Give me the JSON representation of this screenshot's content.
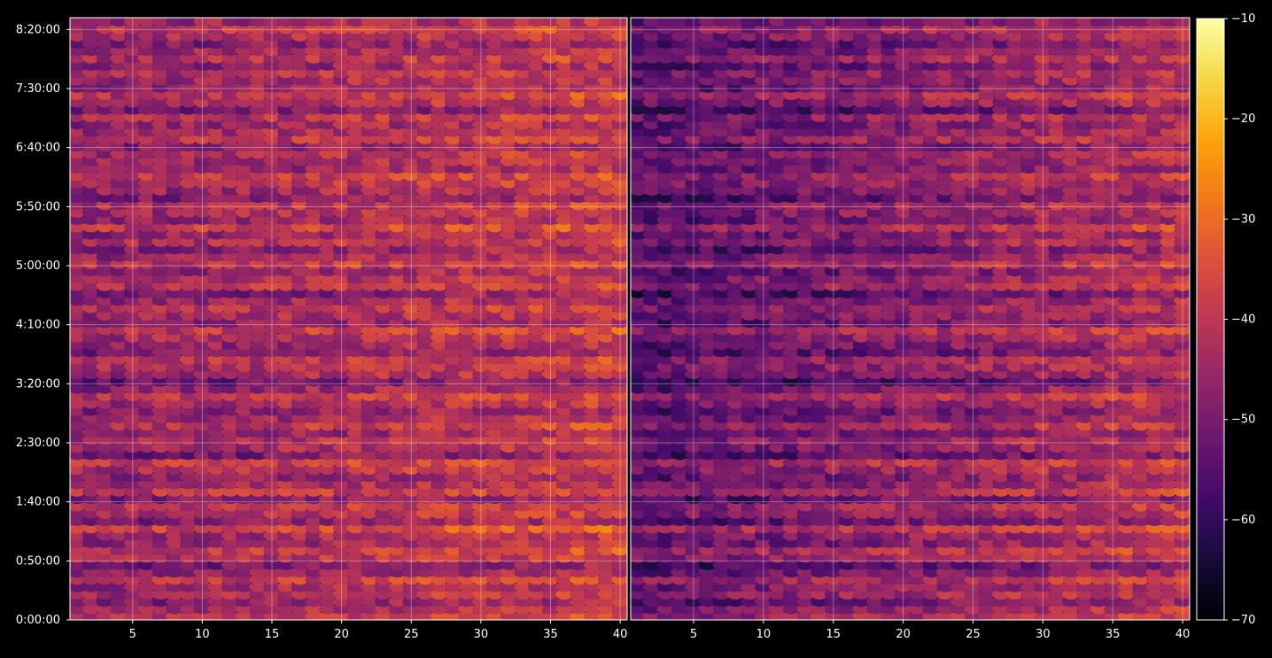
{
  "chart_data": [
    {
      "type": "heatmap",
      "title": "",
      "xlabel": "",
      "ylabel": "",
      "x_range": [
        1,
        40
      ],
      "x_ticks": [
        5,
        10,
        15,
        20,
        25,
        30,
        35,
        40
      ],
      "x_tick_labels": [
        "5",
        "10",
        "15",
        "20",
        "25",
        "30",
        "35",
        "40"
      ],
      "y_range_seconds": [
        0,
        30600
      ],
      "y_ticks": [
        "0:00:00",
        "0:50:00",
        "1:40:00",
        "2:30:00",
        "3:20:00",
        "4:10:00",
        "5:00:00",
        "5:50:00",
        "6:40:00",
        "7:30:00",
        "8:20:00"
      ],
      "grid": true,
      "colormap": "inferno",
      "value_range": [
        -70,
        -10
      ],
      "row_profile_db": [
        -38,
        -42,
        -50,
        -40,
        -45,
        -36,
        -48,
        -55,
        -40,
        -34,
        -46,
        -44,
        -30,
        -50,
        -41,
        -38,
        -52,
        -35,
        -43,
        -47,
        -39,
        -33,
        -55,
        -44,
        -40,
        -48,
        -37,
        -45,
        -50,
        -42,
        -36,
        -46,
        -58,
        -44,
        -40,
        -38,
        -52,
        -47,
        -41,
        -35,
        -49,
        -43,
        -39,
        -45,
        -54,
        -37,
        -42,
        -48,
        -36,
        -44,
        -50,
        -40,
        -46,
        -33,
        -47,
        -42,
        -38,
        -52,
        -45,
        -40,
        -36,
        -48,
        -44,
        -41,
        -50,
        -37,
        -43,
        -46,
        -39,
        -55,
        -42,
        -35,
        -47,
        -44,
        -40,
        -49,
        -38,
        -45,
        -52,
        -41,
        -36,
        -46
      ],
      "column_trend_db": {
        "start": -50,
        "end": -32
      }
    },
    {
      "type": "heatmap",
      "title": "",
      "xlabel": "",
      "ylabel": "",
      "x_range": [
        1,
        40
      ],
      "x_ticks": [
        5,
        10,
        15,
        20,
        25,
        30,
        35,
        40
      ],
      "x_tick_labels": [
        "5",
        "10",
        "15",
        "20",
        "25",
        "30",
        "35",
        "40"
      ],
      "y_range_seconds": [
        0,
        30600
      ],
      "grid": true,
      "colormap": "inferno",
      "value_range": [
        -70,
        -10
      ],
      "row_profile_db": [
        -40,
        -45,
        -55,
        -43,
        -48,
        -40,
        -52,
        -60,
        -44,
        -38,
        -50,
        -48,
        -34,
        -55,
        -45,
        -42,
        -57,
        -39,
        -47,
        -52,
        -44,
        -37,
        -60,
        -49,
        -45,
        -53,
        -41,
        -50,
        -56,
        -47,
        -40,
        -51,
        -64,
        -50,
        -46,
        -43,
        -58,
        -53,
        -46,
        -40,
        -55,
        -49,
        -45,
        -51,
        -61,
        -43,
        -48,
        -54,
        -41,
        -50,
        -57,
        -46,
        -52,
        -39,
        -53,
        -48,
        -44,
        -58,
        -51,
        -46,
        -42,
        -54,
        -50,
        -47,
        -56,
        -43,
        -49,
        -52,
        -45,
        -61,
        -48,
        -41,
        -53,
        -50,
        -46,
        -55,
        -44,
        -51,
        -58,
        -47,
        -42,
        -52
      ],
      "column_trend_db": {
        "start": -60,
        "end": -32
      }
    }
  ],
  "colorbar": {
    "ticks": [
      -10,
      -20,
      -30,
      -40,
      -50,
      -60,
      -70
    ],
    "tick_labels": [
      "−10",
      "−20",
      "−30",
      "−40",
      "−50",
      "−60",
      "−70"
    ]
  }
}
